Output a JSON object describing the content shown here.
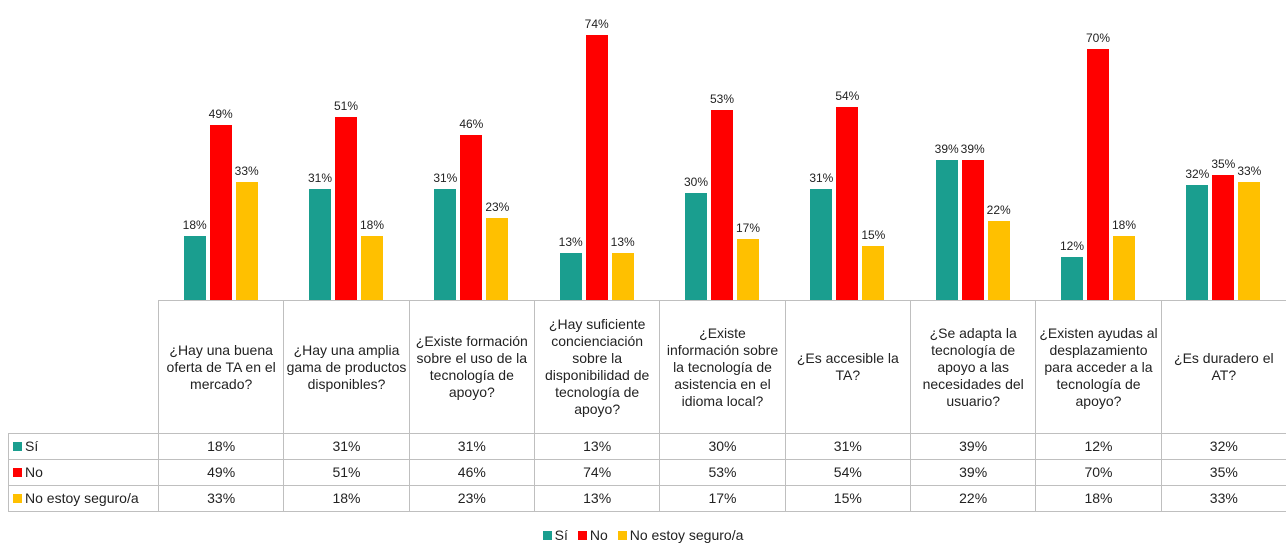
{
  "chart_data": {
    "type": "bar",
    "categories": [
      "¿Hay una buena oferta de TA en el mercado?",
      "¿Hay una amplia gama de productos disponibles?",
      "¿Existe formación sobre el uso de la tecnología de apoyo?",
      "¿Hay suficiente concienciación sobre la disponibilidad de tecnología de apoyo?",
      "¿Existe información sobre la tecnología de asistencia en el idioma local?",
      "¿Es accesible la TA?",
      "¿Se adapta la tecnología de apoyo a las necesidades del usuario?",
      "¿Existen ayudas al desplazamiento para acceder a la tecnología de apoyo?",
      "¿Es duradero el AT?"
    ],
    "series": [
      {
        "name": "Sí",
        "color": "#1a9e8f",
        "values": [
          18,
          31,
          31,
          13,
          30,
          31,
          39,
          12,
          32
        ],
        "value_labels": [
          "18%",
          "31%",
          "31%",
          "13%",
          "30%",
          "31%",
          "39%",
          "12%",
          "32%"
        ]
      },
      {
        "name": "No",
        "color": "#ff0000",
        "values": [
          49,
          51,
          46,
          74,
          53,
          54,
          39,
          70,
          35
        ],
        "value_labels": [
          "49%",
          "51%",
          "46%",
          "74%",
          "53%",
          "54%",
          "39%",
          "70%",
          "35%"
        ]
      },
      {
        "name": "No estoy seguro/a",
        "color": "#ffc000",
        "values": [
          33,
          18,
          23,
          13,
          17,
          15,
          22,
          18,
          33
        ],
        "value_labels": [
          "33%",
          "18%",
          "23%",
          "13%",
          "17%",
          "15%",
          "22%",
          "18%",
          "33%"
        ]
      }
    ]
  }
}
